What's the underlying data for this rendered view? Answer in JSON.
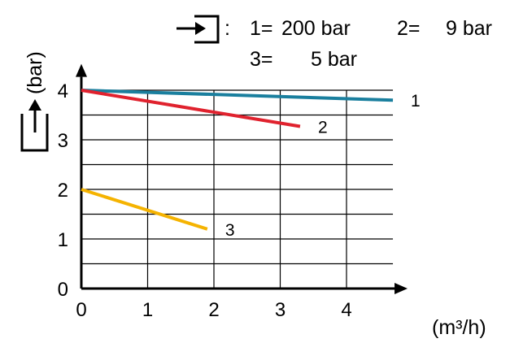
{
  "legend": {
    "inlet_icon": "inlet-pressure-icon",
    "colon": ":",
    "line1_entries": [
      {
        "number": "1=",
        "value": "200 bar"
      },
      {
        "number": "2=",
        "value": "9 bar"
      }
    ],
    "line2_entries": [
      {
        "number": "3=",
        "value": "5 bar"
      }
    ]
  },
  "chart_data": {
    "type": "line",
    "title": "",
    "xlabel": "(m³/h)",
    "ylabel": "(bar)",
    "y_icon": "outlet-pressure-icon",
    "xlim": [
      0,
      4.7
    ],
    "ylim": [
      0,
      4.4
    ],
    "xticks": [
      "0",
      "1",
      "2",
      "3",
      "4"
    ],
    "yticks": [
      "0",
      "1",
      "2",
      "3",
      "4"
    ],
    "grid": true,
    "series": [
      {
        "name": "1",
        "color": "#1a7f9e",
        "x": [
          0,
          4.7
        ],
        "y": [
          4.0,
          3.8
        ]
      },
      {
        "name": "2",
        "color": "#e0222e",
        "x": [
          0,
          3.3
        ],
        "y": [
          4.0,
          3.27
        ]
      },
      {
        "name": "3",
        "color": "#f5b301",
        "x": [
          0,
          1.9
        ],
        "y": [
          2.0,
          1.2
        ]
      }
    ]
  }
}
